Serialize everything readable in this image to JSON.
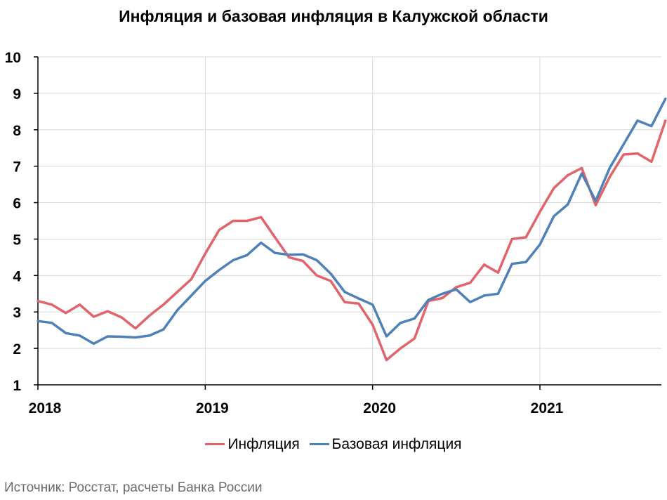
{
  "chart_data": {
    "type": "line",
    "title": "Инфляция и базовая инфляция в Калужской области",
    "xlabel": "",
    "ylabel": "",
    "ylim": [
      1,
      10
    ],
    "yticks": [
      "1",
      "2",
      "3",
      "4",
      "5",
      "6",
      "7",
      "8",
      "9",
      "10"
    ],
    "xtick_labels": [
      "2018",
      "2019",
      "2020",
      "2021"
    ],
    "x_start": "2018-01",
    "grid": true,
    "legend_position": "bottom",
    "series": [
      {
        "name": "Инфляция",
        "color": "#e0646a",
        "values": [
          3.3,
          3.2,
          2.97,
          3.2,
          2.87,
          3.02,
          2.85,
          2.55,
          2.9,
          3.2,
          3.55,
          3.9,
          4.6,
          5.25,
          5.5,
          5.5,
          5.6,
          5.05,
          4.5,
          4.4,
          4.0,
          3.85,
          3.27,
          3.23,
          2.65,
          1.68,
          2.0,
          2.27,
          3.3,
          3.38,
          3.68,
          3.8,
          4.3,
          4.08,
          5.0,
          5.05,
          5.75,
          6.4,
          6.75,
          6.95,
          5.93,
          6.7,
          7.32,
          7.35,
          7.12,
          8.25
        ]
      },
      {
        "name": "Базовая инфляция",
        "color": "#4f81b9",
        "values": [
          2.75,
          2.7,
          2.42,
          2.35,
          2.13,
          2.33,
          2.32,
          2.3,
          2.35,
          2.52,
          3.05,
          3.45,
          3.85,
          4.15,
          4.42,
          4.56,
          4.9,
          4.62,
          4.57,
          4.58,
          4.42,
          4.05,
          3.55,
          3.37,
          3.2,
          2.33,
          2.7,
          2.82,
          3.33,
          3.5,
          3.62,
          3.27,
          3.45,
          3.5,
          4.32,
          4.37,
          4.85,
          5.63,
          5.95,
          6.8,
          6.05,
          6.95,
          7.6,
          8.25,
          8.1,
          8.85
        ]
      }
    ]
  },
  "source": "Источник: Росстат, расчеты Банка России"
}
